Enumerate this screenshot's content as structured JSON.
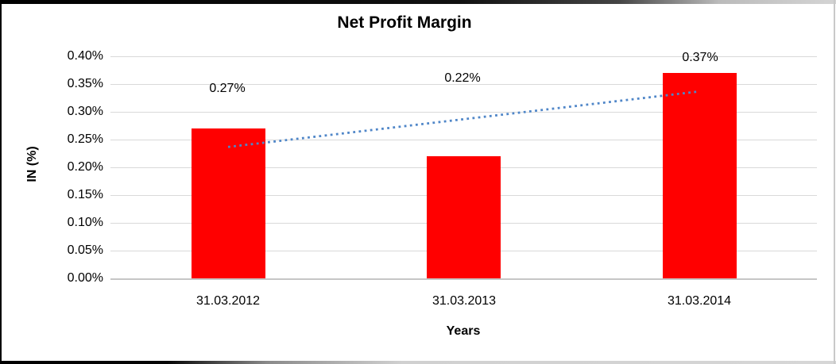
{
  "chart_data": {
    "type": "bar",
    "title": "Net Profit Margin",
    "categories": [
      "31.03.2012",
      "31.03.2013",
      "31.03.2014"
    ],
    "values": [
      0.27,
      0.22,
      0.37
    ],
    "data_labels": [
      "0.27%",
      "0.22%",
      "0.37%"
    ],
    "xlabel": "Years",
    "ylabel": "IN (%)",
    "ylim": [
      0,
      0.4
    ],
    "ytick_step": 0.05,
    "ytick_labels": [
      "0.40%",
      "0.35%",
      "0.30%",
      "0.25%",
      "0.20%",
      "0.15%",
      "0.10%",
      "0.05%",
      "0.00%"
    ],
    "grid": true,
    "legend": "none",
    "bar_color": "#ff0000",
    "background_color": "#ffffff",
    "gridline_color": "#d9d9d9",
    "trendline": {
      "type": "linear",
      "style": "dotted",
      "color": "#4f86c8",
      "value_at_first_category": 0.2367,
      "value_at_last_category": 0.3367
    }
  }
}
